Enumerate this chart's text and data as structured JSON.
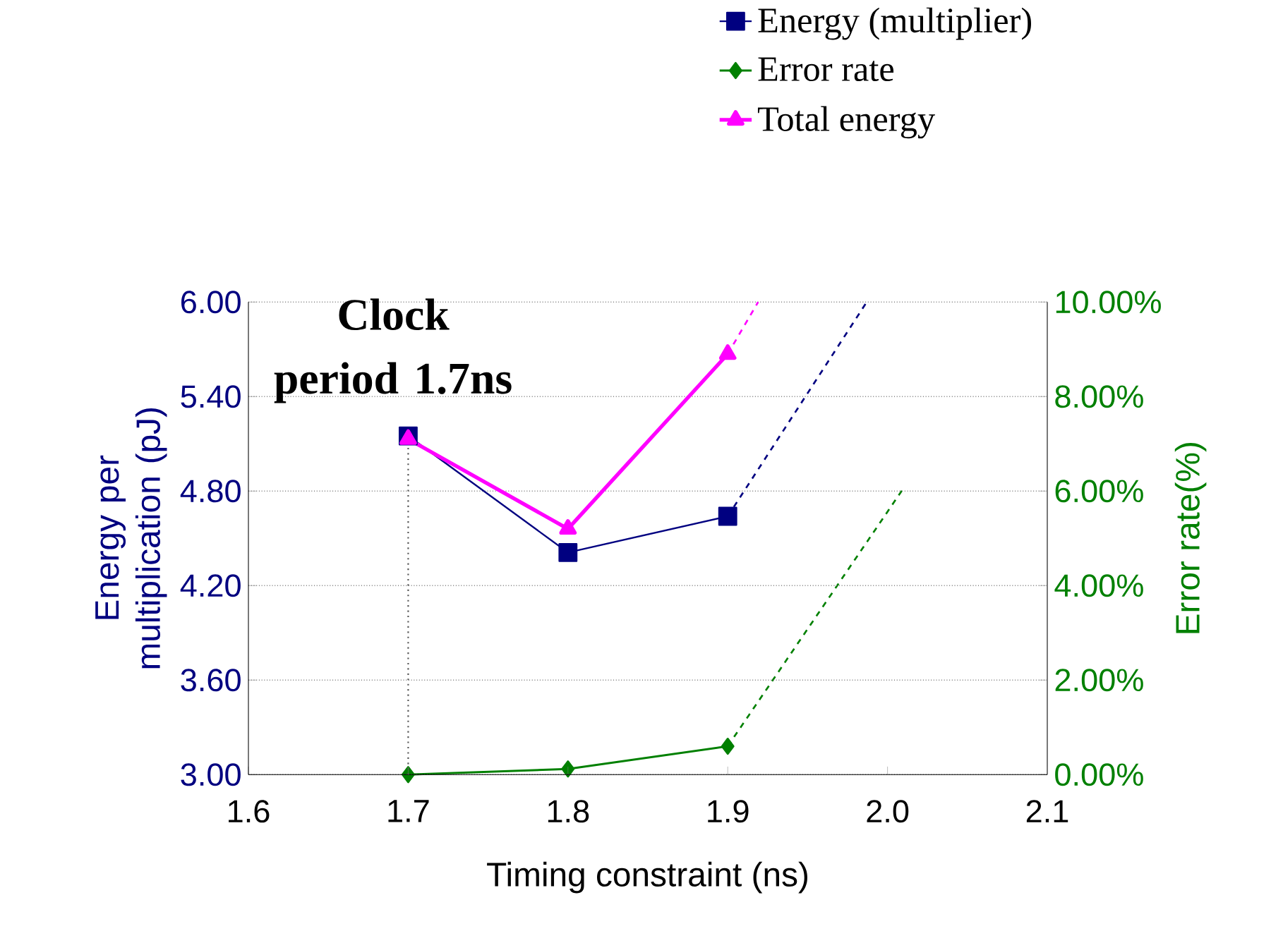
{
  "chart_data": {
    "type": "line",
    "xlabel": "Timing constraint (ns)",
    "ylabel": "Energy per multiplication (pJ)",
    "y2label": "Error rate(%)",
    "xlim": [
      1.6,
      2.1
    ],
    "xticks": [
      1.6,
      1.7,
      1.8,
      1.9,
      {
        "value": 2,
        "label": "2.0"
      },
      2.1
    ],
    "ylim": [
      3,
      6
    ],
    "yticks": [
      {
        "value": 3,
        "label": "3.00"
      },
      {
        "value": 3.6,
        "label": "3.60"
      },
      {
        "value": 4.2,
        "label": "4.20"
      },
      {
        "value": 4.8,
        "label": "4.80"
      },
      {
        "value": 5.4,
        "label": "5.40"
      },
      {
        "value": 6,
        "label": "6.00"
      }
    ],
    "y2lim": [
      0,
      10
    ],
    "y2ticks": [
      {
        "value": 0,
        "label": "0.00%"
      },
      {
        "value": 2,
        "label": "2.00%"
      },
      {
        "value": 4,
        "label": "4.00%"
      },
      {
        "value": 6,
        "label": "6.00%"
      },
      {
        "value": 8,
        "label": "8.00%"
      },
      {
        "value": 10,
        "label": "10.00%"
      }
    ],
    "grid": "y",
    "legend": "top",
    "series": [
      {
        "name": "Energy (multiplier)",
        "color": "#000080",
        "x": [
          1.7,
          1.8,
          1.9
        ],
        "values": [
          5.15,
          4.41,
          4.64
        ],
        "marker": "square"
      },
      {
        "color": "#000080",
        "x": [
          1.9,
          1.987
        ],
        "values": [
          4.64,
          6.0
        ],
        "line_style": "dashed",
        "marker": "none"
      },
      {
        "name": "Error rate",
        "color": "#008000",
        "axis": "y2",
        "x": [
          1.7,
          1.8,
          1.9
        ],
        "values": [
          0,
          0.12,
          0.6
        ],
        "marker": "diamond"
      },
      {
        "color": "#008000",
        "axis": "y2",
        "x": [
          1.9,
          2.01
        ],
        "values": [
          0.6,
          6.06
        ],
        "line_style": "dashed",
        "marker": "none"
      },
      {
        "name": "Total energy",
        "color": "#ff00ff",
        "x": [
          1.7,
          1.8,
          1.9
        ],
        "values": [
          5.13,
          4.56,
          5.67
        ],
        "marker": "triangle"
      },
      {
        "color": "#ff00ff",
        "x": [
          1.9,
          1.919
        ],
        "values": [
          5.67,
          6.0
        ],
        "line_style": "dashed",
        "marker": "none"
      }
    ],
    "ref_lines": [
      {
        "axis": "x",
        "value": 1.7,
        "line_style": "dotted",
        "color": "#555555"
      }
    ],
    "annotations": [
      {
        "text": "Clock period 1.7ns",
        "x": 1.7,
        "y": 5.15
      }
    ]
  }
}
